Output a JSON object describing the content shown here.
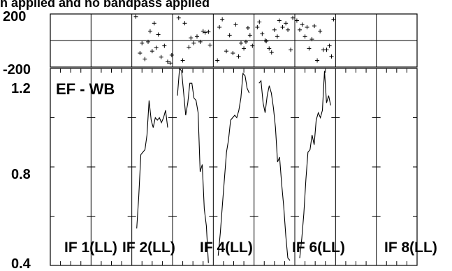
{
  "chart_data": {
    "type": "line",
    "title": "n applied and no bandpass applied",
    "phase_panel": {
      "ylim": [
        -200,
        200
      ],
      "yticks": [
        "200",
        "-200"
      ]
    },
    "amp_panel": {
      "label": "EF - WB",
      "ylim": [
        0.4,
        1.2
      ],
      "yticks": [
        "1.2",
        "0.8",
        "0.4"
      ]
    },
    "columns": [
      {
        "if_label": "",
        "phase": [],
        "amp": []
      },
      {
        "if_label": "IF 1(LL)",
        "phase": [],
        "amp": []
      },
      {
        "if_label": "IF 2(LL)",
        "phase": [
          [
            0.1,
            180
          ],
          [
            0.2,
            -95
          ],
          [
            0.25,
            -20
          ],
          [
            0.32,
            -140
          ],
          [
            0.4,
            -10
          ],
          [
            0.45,
            70
          ],
          [
            0.5,
            -80
          ],
          [
            0.55,
            130
          ],
          [
            0.6,
            -55
          ],
          [
            0.65,
            45
          ],
          [
            0.72,
            -125
          ],
          [
            0.8,
            -40
          ],
          [
            0.88,
            -160
          ],
          [
            0.94,
            -170
          ],
          [
            0.98,
            -110
          ]
        ],
        "amp": [
          0.55,
          0.68,
          0.85,
          0.86,
          0.87,
          0.93,
          1.07,
          0.99,
          0.96,
          1.0,
          0.99,
          1.0,
          0.98,
          1.0,
          1.03,
          0.96
        ]
      },
      {
        "if_label": "",
        "phase": [
          [
            0.15,
            170
          ],
          [
            0.25,
            -150
          ],
          [
            0.3,
            130
          ],
          [
            0.4,
            -50
          ],
          [
            0.45,
            20
          ],
          [
            0.52,
            -20
          ],
          [
            0.6,
            30
          ],
          [
            0.68,
            -10
          ],
          [
            0.75,
            70
          ],
          [
            0.8,
            60
          ],
          [
            0.88,
            65
          ],
          [
            0.92,
            -35
          ]
        ],
        "amp": [
          1.09,
          1.2,
          1.19,
          1.1,
          1.01,
          1.06,
          1.14,
          1.14,
          1.08,
          1.07,
          1.02,
          0.78,
          0.81,
          0.63,
          0.56,
          0.41
        ]
      },
      {
        "if_label": "IF 4(LL)",
        "phase": [
          [
            0.1,
            -150
          ],
          [
            0.15,
            100
          ],
          [
            0.22,
            160
          ],
          [
            0.32,
            -80
          ],
          [
            0.4,
            40
          ],
          [
            0.48,
            -95
          ],
          [
            0.55,
            120
          ],
          [
            0.62,
            -120
          ],
          [
            0.68,
            -20
          ],
          [
            0.75,
            -60
          ],
          [
            0.8,
            -10
          ],
          [
            0.85,
            95
          ],
          [
            0.9,
            40
          ],
          [
            0.96,
            -40
          ]
        ],
        "amp": [
          0.44,
          0.53,
          0.64,
          0.75,
          0.86,
          0.91,
          0.99,
          1.0,
          1.01,
          1.0,
          1.03,
          1.08,
          1.18,
          1.17,
          1.12,
          1.1
        ]
      },
      {
        "if_label": "",
        "phase": [
          [
            0.08,
            100
          ],
          [
            0.13,
            140
          ],
          [
            0.2,
            50
          ],
          [
            0.27,
            0
          ],
          [
            0.3,
            -5
          ],
          [
            0.37,
            -60
          ],
          [
            0.43,
            -90
          ],
          [
            0.5,
            80
          ],
          [
            0.57,
            30
          ],
          [
            0.62,
            150
          ],
          [
            0.7,
            100
          ],
          [
            0.78,
            130
          ],
          [
            0.83,
            80
          ],
          [
            0.9,
            -70
          ],
          [
            0.95,
            170
          ]
        ],
        "amp": [
          1.14,
          1.15,
          1.06,
          1.02,
          1.09,
          1.13,
          1.1,
          1.04,
          0.96,
          0.82,
          0.84,
          0.73,
          0.64,
          0.52,
          0.43,
          0.42
        ]
      },
      {
        "if_label": "IF 6(LL)",
        "phase": [
          [
            0.05,
            150
          ],
          [
            0.12,
            80
          ],
          [
            0.18,
            120
          ],
          [
            0.25,
            30
          ],
          [
            0.3,
            100
          ],
          [
            0.35,
            -60
          ],
          [
            0.42,
            10
          ],
          [
            0.48,
            110
          ],
          [
            0.55,
            -150
          ],
          [
            0.62,
            70
          ],
          [
            0.7,
            -70
          ],
          [
            0.78,
            -70
          ],
          [
            0.85,
            -40
          ],
          [
            0.9,
            -120
          ],
          [
            0.95,
            160
          ]
        ],
        "amp": [
          0.43,
          0.51,
          0.61,
          0.75,
          0.86,
          0.87,
          0.93,
          0.89,
          0.99,
          1.02,
          1.0,
          1.03,
          1.19,
          1.06,
          1.09,
          1.05
        ]
      },
      {
        "if_label": "",
        "phase": [],
        "amp": []
      },
      {
        "if_label": "IF 8(LL)",
        "phase": [],
        "amp": []
      }
    ]
  }
}
